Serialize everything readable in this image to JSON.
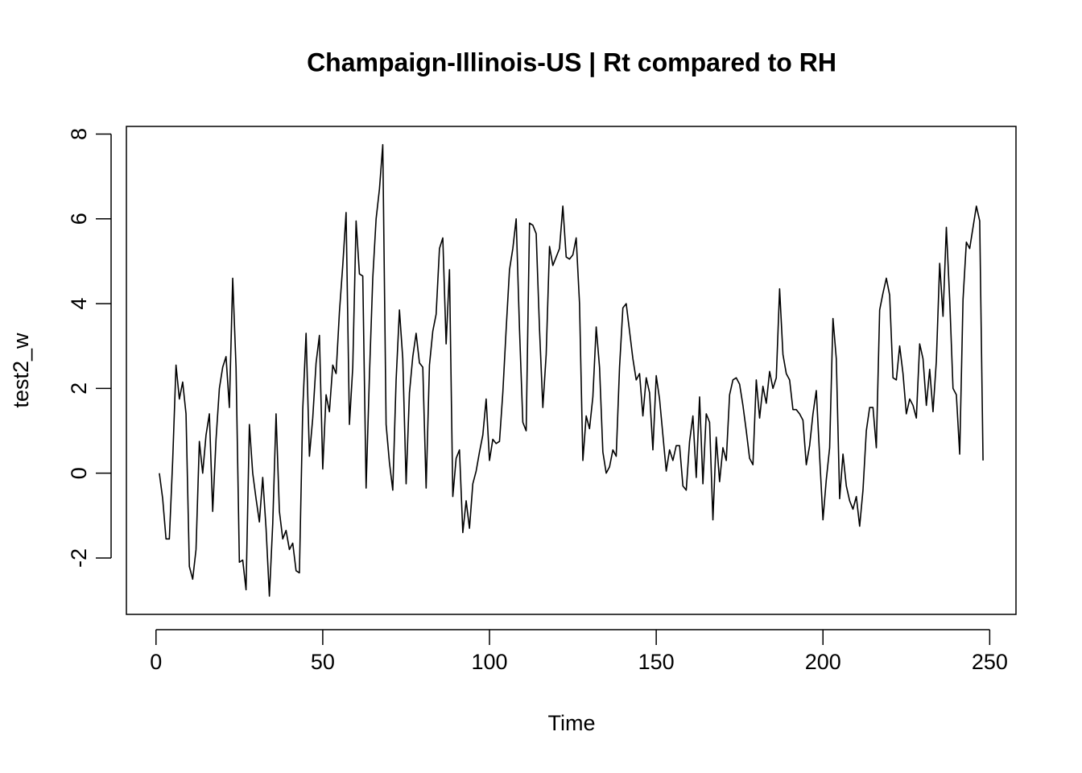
{
  "chart_data": {
    "type": "line",
    "title": "Champaign-Illinois-US | Rt compared to RH",
    "xlabel": "Time",
    "ylabel": "test2_w",
    "x": [
      1,
      2,
      3,
      4,
      5,
      6,
      7,
      8,
      9,
      10,
      11,
      12,
      13,
      14,
      15,
      16,
      17,
      18,
      19,
      20,
      21,
      22,
      23,
      24,
      25,
      26,
      27,
      28,
      29,
      30,
      31,
      32,
      33,
      34,
      35,
      36,
      37,
      38,
      39,
      40,
      41,
      42,
      43,
      44,
      45,
      46,
      47,
      48,
      49,
      50,
      51,
      52,
      53,
      54,
      55,
      56,
      57,
      58,
      59,
      60,
      61,
      62,
      63,
      64,
      65,
      66,
      67,
      68,
      69,
      70,
      71,
      72,
      73,
      74,
      75,
      76,
      77,
      78,
      79,
      80,
      81,
      82,
      83,
      84,
      85,
      86,
      87,
      88,
      89,
      90,
      91,
      92,
      93,
      94,
      95,
      96,
      97,
      98,
      99,
      100,
      101,
      102,
      103,
      104,
      105,
      106,
      107,
      108,
      109,
      110,
      111,
      112,
      113,
      114,
      115,
      116,
      117,
      118,
      119,
      120,
      121,
      122,
      123,
      124,
      125,
      126,
      127,
      128,
      129,
      130,
      131,
      132,
      133,
      134,
      135,
      136,
      137,
      138,
      139,
      140,
      141,
      142,
      143,
      144,
      145,
      146,
      147,
      148,
      149,
      150,
      151,
      152,
      153,
      154,
      155,
      156,
      157,
      158,
      159,
      160,
      161,
      162,
      163,
      164,
      165,
      166,
      167,
      168,
      169,
      170,
      171,
      172,
      173,
      174,
      175,
      176,
      177,
      178,
      179,
      180,
      181,
      182,
      183,
      184,
      185,
      186,
      187,
      188,
      189,
      190,
      191,
      192,
      193,
      194,
      195,
      196,
      197,
      198,
      199,
      200,
      201,
      202,
      203,
      204,
      205,
      206,
      207,
      208,
      209,
      210,
      211,
      212,
      213,
      214,
      215,
      216,
      217,
      218,
      219,
      220,
      221,
      222,
      223,
      224,
      225,
      226,
      227,
      228,
      229,
      230,
      231,
      232,
      233,
      234,
      235,
      236,
      237,
      238,
      239,
      240,
      241,
      242,
      243,
      244,
      245,
      246,
      247,
      248
    ],
    "values": [
      0.0,
      -0.6,
      -1.55,
      -1.55,
      0.3,
      2.55,
      1.75,
      2.15,
      1.4,
      -2.2,
      -2.5,
      -1.8,
      0.75,
      0.0,
      0.9,
      1.4,
      -0.9,
      0.8,
      2.0,
      2.5,
      2.75,
      1.55,
      4.6,
      2.5,
      -2.1,
      -2.05,
      -2.75,
      1.15,
      0.0,
      -0.6,
      -1.15,
      -0.1,
      -1.3,
      -2.9,
      -1.2,
      1.4,
      -0.9,
      -1.55,
      -1.35,
      -1.8,
      -1.65,
      -2.3,
      -2.35,
      1.5,
      3.3,
      0.4,
      1.3,
      2.6,
      3.25,
      0.1,
      1.85,
      1.45,
      2.55,
      2.35,
      3.8,
      4.9,
      6.15,
      1.15,
      2.5,
      5.95,
      4.7,
      4.65,
      -0.35,
      2.3,
      4.6,
      6.0,
      6.7,
      7.75,
      1.15,
      0.25,
      -0.4,
      2.2,
      3.85,
      2.7,
      -0.25,
      1.9,
      2.75,
      3.3,
      2.6,
      2.5,
      -0.35,
      2.55,
      3.35,
      3.75,
      5.3,
      5.55,
      3.05,
      4.8,
      -0.55,
      0.35,
      0.55,
      -1.4,
      -0.65,
      -1.3,
      -0.25,
      0.05,
      0.5,
      0.9,
      1.75,
      0.3,
      0.8,
      0.7,
      0.75,
      1.9,
      3.4,
      4.8,
      5.3,
      6.0,
      3.4,
      1.2,
      1.0,
      5.9,
      5.85,
      5.65,
      3.4,
      1.55,
      2.8,
      5.35,
      4.9,
      5.1,
      5.3,
      6.3,
      5.1,
      5.05,
      5.15,
      5.55,
      4.0,
      0.3,
      1.35,
      1.05,
      1.8,
      3.45,
      2.5,
      0.5,
      0.0,
      0.15,
      0.55,
      0.4,
      2.5,
      3.9,
      4.0,
      3.35,
      2.7,
      2.2,
      2.35,
      1.35,
      2.25,
      1.9,
      0.55,
      2.3,
      1.75,
      0.9,
      0.05,
      0.55,
      0.3,
      0.65,
      0.65,
      -0.3,
      -0.4,
      0.75,
      1.35,
      -0.1,
      1.8,
      -0.25,
      1.4,
      1.2,
      -1.1,
      0.85,
      -0.2,
      0.6,
      0.3,
      1.85,
      2.2,
      2.25,
      2.1,
      1.6,
      1.0,
      0.35,
      0.2,
      2.2,
      1.3,
      2.05,
      1.65,
      2.4,
      2.0,
      2.25,
      4.35,
      2.8,
      2.35,
      2.2,
      1.5,
      1.5,
      1.4,
      1.25,
      0.2,
      0.65,
      1.4,
      1.95,
      0.4,
      -1.1,
      -0.15,
      0.6,
      3.65,
      2.7,
      -0.6,
      0.45,
      -0.3,
      -0.65,
      -0.85,
      -0.55,
      -1.25,
      -0.4,
      1.0,
      1.55,
      1.55,
      0.6,
      3.85,
      4.25,
      4.6,
      4.2,
      2.25,
      2.2,
      3.0,
      2.35,
      1.4,
      1.75,
      1.6,
      1.3,
      3.05,
      2.7,
      1.6,
      2.45,
      1.45,
      2.65,
      4.95,
      3.7,
      5.8,
      4.1,
      2.0,
      1.85,
      0.45,
      4.1,
      5.45,
      5.3,
      5.8,
      6.3,
      5.95,
      0.3
    ],
    "color": "#000000",
    "xlim": [
      -8.88,
      257.88
    ],
    "xticks": [
      0,
      50,
      100,
      150,
      200,
      250
    ],
    "ylim": [
      -3.33,
      8.18
    ],
    "yticks": [
      -2,
      0,
      2,
      4,
      6,
      8
    ]
  }
}
